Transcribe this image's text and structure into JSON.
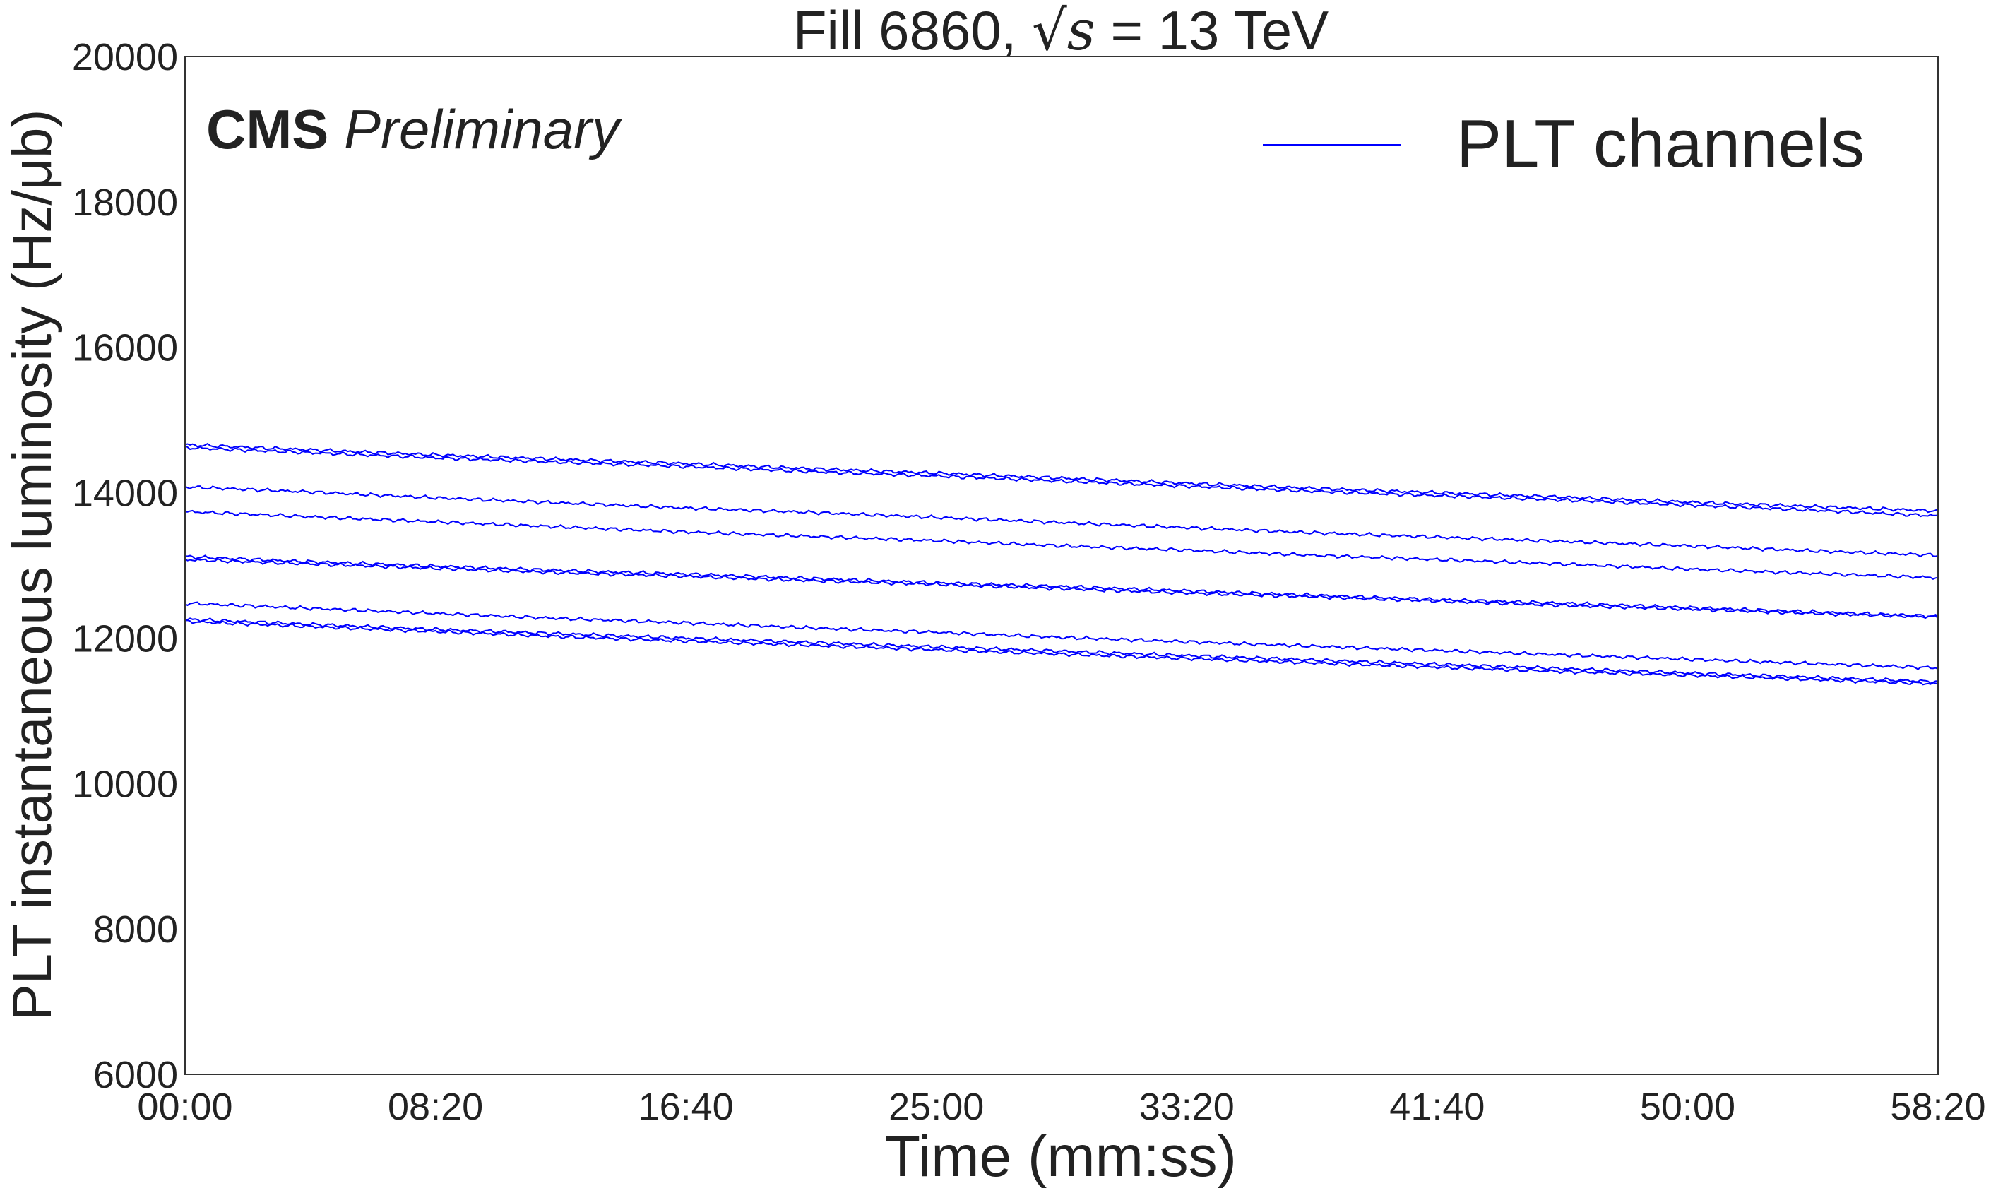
{
  "chart_data": {
    "type": "line",
    "title_prefix": "Fill 6860, ",
    "title_sqrt_symbol": "√",
    "title_sqrt_var": "s",
    "title_suffix": " = 13 TeV",
    "annotation_bold": "CMS",
    "annotation_italic": "Preliminary",
    "xlabel": "Time (mm:ss)",
    "ylabel": "PLT instantaneous luminosity (Hz/μb)",
    "xlim": [
      0,
      3500
    ],
    "ylim": [
      6000,
      20000
    ],
    "x_ticks": [
      0,
      500,
      1000,
      1500,
      2000,
      2500,
      3000,
      3500
    ],
    "x_tick_labels": [
      "00:00",
      "08:20",
      "16:40",
      "25:00",
      "33:20",
      "41:40",
      "50:00",
      "58:20"
    ],
    "y_ticks": [
      6000,
      8000,
      10000,
      12000,
      14000,
      16000,
      18000,
      20000
    ],
    "y_tick_labels": [
      "6000",
      "8000",
      "10000",
      "12000",
      "14000",
      "16000",
      "18000",
      "20000"
    ],
    "grid": false,
    "legend": {
      "position": "top-right",
      "label": "PLT channels"
    },
    "line_color": "#0000ff",
    "x": [
      0,
      250,
      500,
      750,
      1000,
      1250,
      1500,
      1750,
      2000,
      2250,
      2500,
      2750,
      3000,
      3250,
      3500
    ],
    "series": [
      {
        "values": [
          14660,
          14590,
          14520,
          14460,
          14400,
          14330,
          14270,
          14200,
          14130,
          14060,
          14000,
          13940,
          13870,
          13810,
          13750
        ]
      },
      {
        "values": [
          14620,
          14550,
          14480,
          14420,
          14360,
          14290,
          14230,
          14160,
          14090,
          14020,
          13960,
          13900,
          13830,
          13760,
          13680
        ]
      },
      {
        "values": [
          14080,
          14010,
          13930,
          13860,
          13790,
          13730,
          13660,
          13590,
          13520,
          13450,
          13390,
          13330,
          13270,
          13200,
          13140
        ]
      },
      {
        "values": [
          13740,
          13670,
          13600,
          13530,
          13460,
          13400,
          13340,
          13270,
          13210,
          13140,
          13080,
          13020,
          12950,
          12890,
          12830
        ]
      },
      {
        "values": [
          13120,
          13050,
          12990,
          12930,
          12880,
          12820,
          12760,
          12710,
          12650,
          12590,
          12530,
          12480,
          12420,
          12360,
          12300
        ]
      },
      {
        "values": [
          13080,
          13020,
          12960,
          12900,
          12850,
          12790,
          12740,
          12680,
          12620,
          12570,
          12510,
          12450,
          12400,
          12340,
          12290
        ]
      },
      {
        "values": [
          12480,
          12410,
          12340,
          12270,
          12210,
          12140,
          12080,
          12010,
          11950,
          11890,
          11830,
          11770,
          11710,
          11650,
          11590
        ]
      },
      {
        "values": [
          12260,
          12190,
          12120,
          12060,
          12000,
          11940,
          11880,
          11820,
          11760,
          11700,
          11640,
          11580,
          11520,
          11460,
          11400
        ]
      },
      {
        "values": [
          12230,
          12160,
          12090,
          12020,
          11960,
          11900,
          11840,
          11780,
          11720,
          11660,
          11600,
          11540,
          11490,
          11430,
          11370
        ]
      }
    ]
  }
}
